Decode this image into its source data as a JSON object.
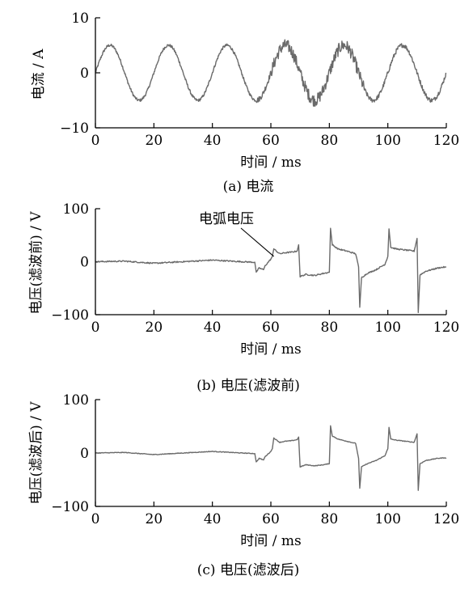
{
  "chart_data": [
    {
      "type": "line",
      "panel": "a",
      "caption": "(a)  电流",
      "xlabel": "时间 / ms",
      "ylabel": "电流 / A",
      "xlim": [
        0,
        120
      ],
      "ylim": [
        -10,
        10
      ],
      "xticks": [
        "0",
        "20",
        "40",
        "60",
        "80",
        "100",
        "120"
      ],
      "yticks": [
        "10",
        "0",
        "−10"
      ],
      "grid": false,
      "series": [
        {
          "signal": "sine",
          "amplitude": 5,
          "period_ms": 20,
          "noise_regions": [
            [
              55,
              60,
              0.5
            ],
            [
              60,
              92,
              1.1
            ],
            [
              92,
              120,
              0.4
            ]
          ],
          "x": [
            0,
            5,
            10,
            15,
            20,
            25,
            30,
            35,
            40,
            45,
            50,
            55,
            60,
            65,
            70,
            75,
            80,
            85,
            90,
            95,
            100,
            105,
            110,
            115,
            120
          ],
          "y": [
            0,
            5,
            0,
            -5,
            0,
            5,
            0,
            -5,
            0,
            5,
            0,
            -5,
            0,
            5.6,
            0,
            -5,
            0,
            5.8,
            0,
            -5,
            0,
            5,
            0,
            -5,
            0
          ]
        }
      ]
    },
    {
      "type": "line",
      "panel": "b",
      "caption": "(b)  电压(滤波前)",
      "xlabel": "时间 / ms",
      "ylabel": "电压(滤波前) / V",
      "xlim": [
        0,
        120
      ],
      "ylim": [
        -100,
        100
      ],
      "xticks": [
        "0",
        "20",
        "40",
        "60",
        "80",
        "100",
        "120"
      ],
      "yticks": [
        "100",
        "0",
        "−100"
      ],
      "grid": false,
      "annotation": {
        "text": "电弧电压",
        "at": [
          61,
          10
        ]
      },
      "series": [
        {
          "noise": 1.2,
          "x": [
            0,
            10,
            20,
            30,
            40,
            50,
            54.5,
            55,
            56,
            57.5,
            58,
            60,
            60.5,
            61,
            63,
            65,
            67,
            69,
            69.5,
            70,
            72,
            75,
            78,
            80,
            80.4,
            81,
            83,
            86,
            89,
            90,
            90.4,
            91,
            93,
            96,
            99,
            100,
            100.4,
            101,
            103,
            106,
            109,
            110,
            110.4,
            111,
            113,
            117,
            119.5,
            120
          ],
          "y": [
            0,
            1,
            -3,
            0,
            3,
            0,
            -1,
            -20,
            -12,
            -15,
            -8,
            5,
            10,
            24,
            15,
            17,
            18,
            20,
            32,
            -28,
            -24,
            -26,
            -22,
            -20,
            63,
            32,
            24,
            20,
            15,
            -10,
            -86,
            -30,
            -22,
            -15,
            -5,
            10,
            62,
            27,
            24,
            22,
            20,
            44,
            -96,
            -25,
            -18,
            -12,
            -10,
            -10
          ]
        }
      ]
    },
    {
      "type": "line",
      "panel": "c",
      "caption": "(c)  电压(滤波后)",
      "xlabel": "时间 / ms",
      "ylabel": "电压(滤波后) / V",
      "xlim": [
        0,
        120
      ],
      "ylim": [
        -100,
        100
      ],
      "xticks": [
        "0",
        "20",
        "40",
        "60",
        "80",
        "100",
        "120"
      ],
      "yticks": [
        "100",
        "0",
        "−100"
      ],
      "grid": false,
      "series": [
        {
          "noise": 0.6,
          "x": [
            0,
            10,
            20,
            30,
            40,
            50,
            54.5,
            55,
            56,
            57.5,
            58,
            60,
            60.5,
            61,
            63,
            65,
            67,
            69,
            69.5,
            70,
            72,
            75,
            78,
            80,
            80.4,
            81,
            83,
            86,
            89,
            90,
            90.4,
            91,
            93,
            96,
            99,
            100,
            100.4,
            101,
            103,
            106,
            109,
            110,
            110.4,
            111,
            113,
            117,
            119.5,
            120
          ],
          "y": [
            0,
            1,
            -3,
            0,
            3,
            0,
            -1,
            -17,
            -10,
            -13,
            -7,
            3,
            8,
            28,
            20,
            22,
            23,
            25,
            30,
            -26,
            -22,
            -24,
            -22,
            -20,
            51,
            32,
            26,
            22,
            18,
            -10,
            -66,
            -26,
            -20,
            -14,
            -5,
            8,
            48,
            26,
            24,
            22,
            20,
            36,
            -70,
            -20,
            -14,
            -10,
            -9,
            -10
          ]
        }
      ]
    }
  ]
}
